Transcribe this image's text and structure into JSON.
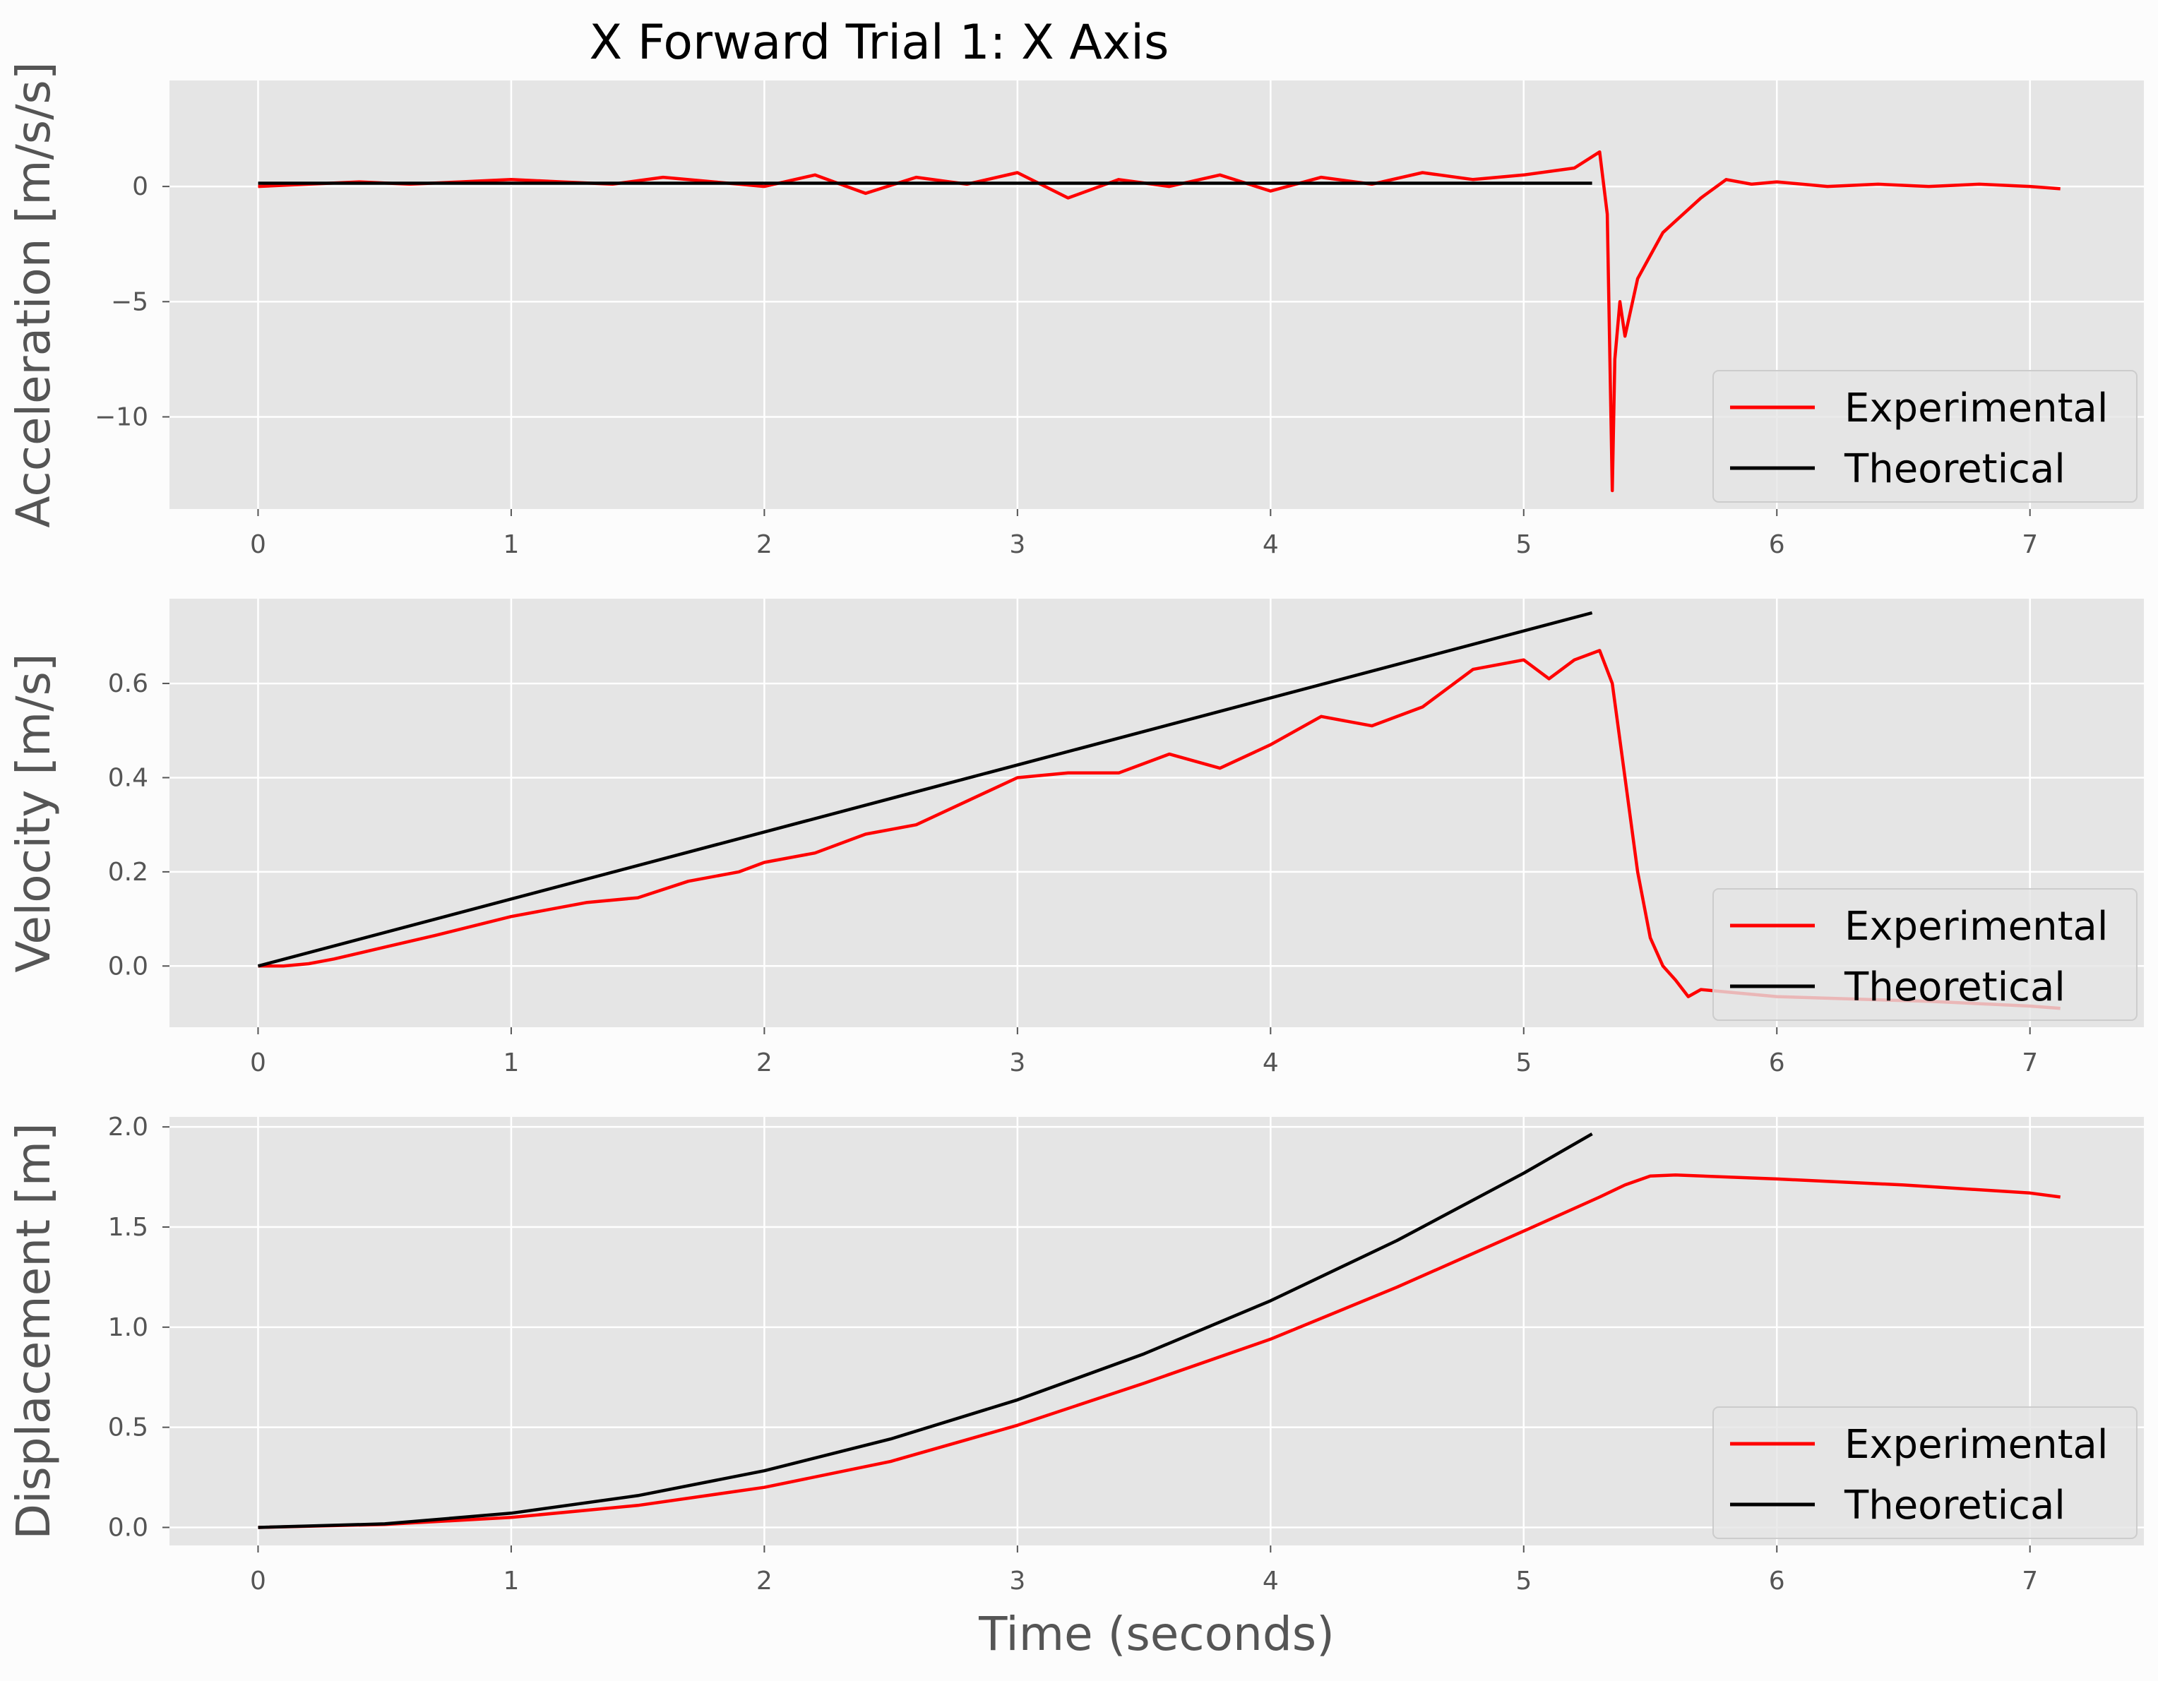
{
  "chart_data": [
    {
      "type": "line",
      "title": "X Forward Trial 1: X Axis",
      "xlabel": "",
      "ylabel": "Acceleration [m/s/s]",
      "xlim": [
        -0.35,
        7.45
      ],
      "ylim": [
        -14.0,
        4.6
      ],
      "xticks": [
        0,
        1,
        2,
        3,
        4,
        5,
        6,
        7
      ],
      "xtick_labels": [
        "0",
        "1",
        "2",
        "3",
        "4",
        "5",
        "6",
        "7"
      ],
      "yticks": [
        0,
        -5,
        -10
      ],
      "ytick_labels": [
        "0",
        "−5",
        "−10"
      ],
      "grid": true,
      "legend_position": "lower right",
      "series": [
        {
          "name": "Experimental",
          "color": "#ff0000",
          "x": [
            0,
            0.2,
            0.4,
            0.6,
            0.8,
            1.0,
            1.2,
            1.4,
            1.6,
            1.8,
            2.0,
            2.2,
            2.4,
            2.6,
            2.8,
            3.0,
            3.2,
            3.4,
            3.6,
            3.8,
            4.0,
            4.2,
            4.4,
            4.6,
            4.8,
            5.0,
            5.2,
            5.3,
            5.33,
            5.35,
            5.36,
            5.38,
            5.4,
            5.45,
            5.5,
            5.55,
            5.6,
            5.7,
            5.8,
            5.9,
            6.0,
            6.2,
            6.4,
            6.6,
            6.8,
            7.0,
            7.12
          ],
          "y": [
            0.0,
            0.1,
            0.2,
            0.1,
            0.2,
            0.3,
            0.2,
            0.1,
            0.4,
            0.2,
            0.0,
            0.5,
            -0.3,
            0.4,
            0.1,
            0.6,
            -0.5,
            0.3,
            0.0,
            0.5,
            -0.2,
            0.4,
            0.1,
            0.6,
            0.3,
            0.5,
            0.8,
            1.5,
            -1.2,
            -13.2,
            -7.5,
            -5.0,
            -6.5,
            -4.0,
            -3.0,
            -2.0,
            -1.5,
            -0.5,
            0.3,
            0.1,
            0.2,
            0.0,
            0.1,
            0.0,
            0.1,
            0.0,
            -0.1
          ]
        },
        {
          "name": "Theoretical",
          "color": "#000000",
          "x": [
            0,
            5.27
          ],
          "y": [
            0.14,
            0.14
          ]
        }
      ]
    },
    {
      "type": "line",
      "xlabel": "",
      "ylabel": "Velocity [m/s]",
      "xlim": [
        -0.35,
        7.45
      ],
      "ylim": [
        -0.13,
        0.78
      ],
      "xticks": [
        0,
        1,
        2,
        3,
        4,
        5,
        6,
        7
      ],
      "xtick_labels": [
        "0",
        "1",
        "2",
        "3",
        "4",
        "5",
        "6",
        "7"
      ],
      "yticks": [
        0.0,
        0.2,
        0.4,
        0.6
      ],
      "ytick_labels": [
        "0.0",
        "0.2",
        "0.4",
        "0.6"
      ],
      "grid": true,
      "legend_position": "lower right",
      "series": [
        {
          "name": "Experimental",
          "color": "#ff0000",
          "x": [
            0,
            0.1,
            0.2,
            0.3,
            0.5,
            0.7,
            1.0,
            1.3,
            1.5,
            1.7,
            1.9,
            2.0,
            2.2,
            2.4,
            2.6,
            2.8,
            3.0,
            3.2,
            3.4,
            3.6,
            3.8,
            4.0,
            4.2,
            4.4,
            4.6,
            4.8,
            5.0,
            5.1,
            5.2,
            5.3,
            5.35,
            5.4,
            5.45,
            5.5,
            5.55,
            5.6,
            5.65,
            5.7,
            5.8,
            6.0,
            6.3,
            6.6,
            7.0,
            7.12
          ],
          "y": [
            0.0,
            0.0,
            0.005,
            0.015,
            0.04,
            0.065,
            0.105,
            0.135,
            0.145,
            0.18,
            0.2,
            0.22,
            0.24,
            0.28,
            0.3,
            0.35,
            0.4,
            0.41,
            0.41,
            0.45,
            0.42,
            0.47,
            0.53,
            0.51,
            0.55,
            0.63,
            0.65,
            0.61,
            0.65,
            0.67,
            0.6,
            0.4,
            0.2,
            0.06,
            0.0,
            -0.03,
            -0.065,
            -0.05,
            -0.055,
            -0.065,
            -0.07,
            -0.075,
            -0.085,
            -0.09
          ]
        },
        {
          "name": "Theoretical",
          "color": "#000000",
          "x": [
            0,
            5.27
          ],
          "y": [
            0.0,
            0.75
          ]
        }
      ]
    },
    {
      "type": "line",
      "xlabel": "Time (seconds)",
      "ylabel": "Displacement [m]",
      "xlim": [
        -0.35,
        7.45
      ],
      "ylim": [
        -0.09,
        2.05
      ],
      "xticks": [
        0,
        1,
        2,
        3,
        4,
        5,
        6,
        7
      ],
      "xtick_labels": [
        "0",
        "1",
        "2",
        "3",
        "4",
        "5",
        "6",
        "7"
      ],
      "yticks": [
        0.0,
        0.5,
        1.0,
        1.5,
        2.0
      ],
      "ytick_labels": [
        "0.0",
        "0.5",
        "1.0",
        "1.5",
        "2.0"
      ],
      "grid": true,
      "legend_position": "lower right",
      "series": [
        {
          "name": "Experimental",
          "color": "#ff0000",
          "x": [
            0,
            0.5,
            1.0,
            1.5,
            2.0,
            2.5,
            3.0,
            3.5,
            4.0,
            4.5,
            5.0,
            5.3,
            5.4,
            5.5,
            5.6,
            6.0,
            6.5,
            7.0,
            7.12
          ],
          "y": [
            0.0,
            0.015,
            0.05,
            0.11,
            0.2,
            0.33,
            0.51,
            0.72,
            0.94,
            1.2,
            1.48,
            1.65,
            1.71,
            1.755,
            1.76,
            1.74,
            1.71,
            1.67,
            1.65
          ]
        },
        {
          "name": "Theoretical",
          "color": "#000000",
          "x": [
            0,
            0.5,
            1.0,
            1.5,
            2.0,
            2.5,
            3.0,
            3.5,
            4.0,
            4.5,
            5.0,
            5.27
          ],
          "y": [
            0.0,
            0.018,
            0.071,
            0.159,
            0.283,
            0.442,
            0.637,
            0.867,
            1.132,
            1.433,
            1.769,
            1.965
          ]
        }
      ]
    }
  ]
}
